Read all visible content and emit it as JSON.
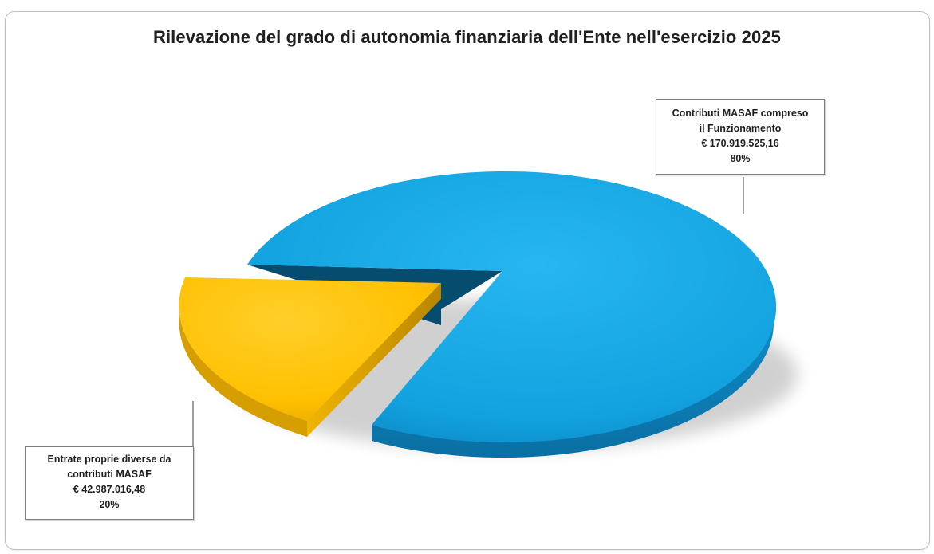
{
  "chart_data": {
    "type": "pie",
    "title": "Rilevazione del grado di autonomia finanziaria dell'Ente nell'esercizio 2025",
    "slices": [
      {
        "label_lines": [
          "Contributi MASAF compreso",
          "il Funzionamento"
        ],
        "value_text": "€ 170.919.525,16",
        "value": 170919525.16,
        "percent_text": "80%",
        "percent": 80,
        "color": "#1aa7e3"
      },
      {
        "label_lines": [
          "Entrate proprie diverse da",
          "contributi MASAF"
        ],
        "value_text": "€ 42.987.016,48",
        "value": 42987016.48,
        "percent_text": "20%",
        "percent": 20,
        "color": "#ffc000"
      }
    ],
    "style": "3d-pie-exploded",
    "legend": "none"
  }
}
